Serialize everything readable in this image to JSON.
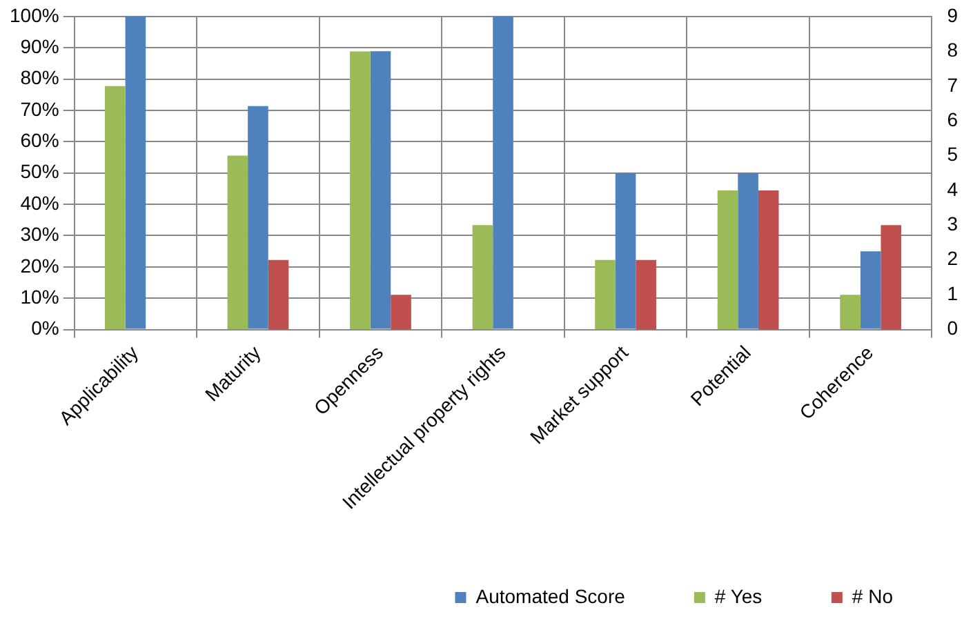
{
  "chart_data": {
    "type": "bar",
    "categories": [
      "Applicability",
      "Maturity",
      "Openness",
      "Intellectual property rights",
      "Market support",
      "Potential",
      "Coherence"
    ],
    "series": [
      {
        "name": "# Yes",
        "color": "#9bbb59",
        "axis": "y2",
        "values": [
          7,
          5,
          8,
          3,
          2,
          4,
          1
        ]
      },
      {
        "name": "Automated Score",
        "color": "#4f81bd",
        "values": [
          100,
          71.4,
          88.9,
          100,
          50,
          50,
          25
        ]
      },
      {
        "name": "# No",
        "color": "#c0504d",
        "axis": "y2",
        "values": [
          0,
          2,
          1,
          0,
          2,
          4,
          3
        ]
      }
    ],
    "ylim": [
      0,
      100
    ],
    "yticks": [
      {
        "value": 0,
        "label": "0%"
      },
      {
        "value": 10,
        "label": "10%"
      },
      {
        "value": 20,
        "label": "20%"
      },
      {
        "value": 30,
        "label": "30%"
      },
      {
        "value": 40,
        "label": "40%"
      },
      {
        "value": 50,
        "label": "50%"
      },
      {
        "value": 60,
        "label": "60%"
      },
      {
        "value": 70,
        "label": "70%"
      },
      {
        "value": 80,
        "label": "80%"
      },
      {
        "value": 90,
        "label": "90%"
      },
      {
        "value": 100,
        "label": "100%"
      }
    ],
    "y2lim": [
      0,
      9
    ],
    "y2ticks": [
      0,
      1,
      2,
      3,
      4,
      5,
      6,
      7,
      8,
      9
    ],
    "grid": true,
    "legend": "bottom right"
  }
}
